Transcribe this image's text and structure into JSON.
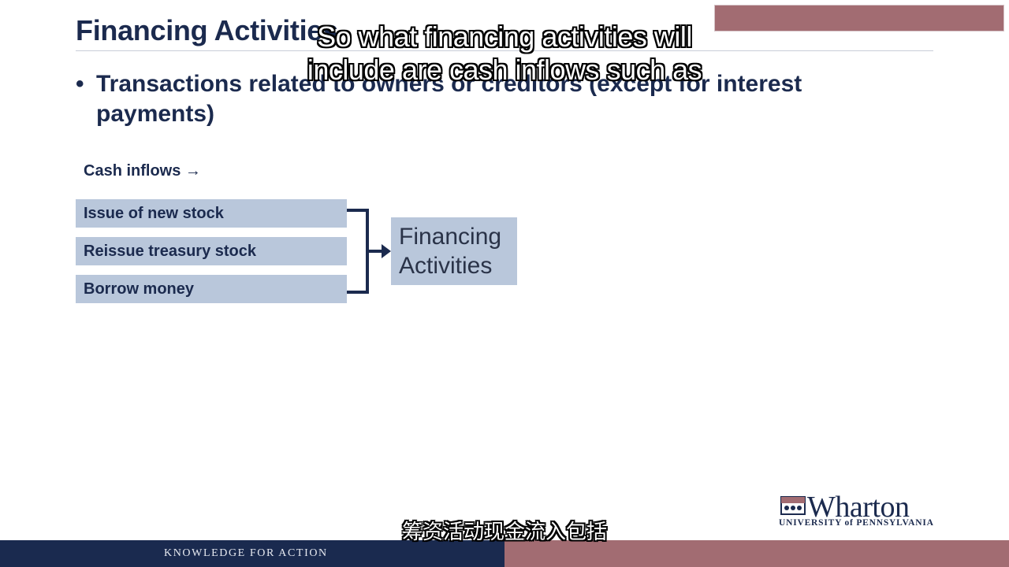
{
  "slide": {
    "title": "Financing Activities",
    "bullet": "Transactions related to owners or creditors (except for interest payments)",
    "cash_inflows_label": "Cash inflows →",
    "items": [
      "Issue of new stock",
      "Reissue treasury stock",
      "Borrow money"
    ],
    "target_line1": "Financing",
    "target_line2": "Activities"
  },
  "subtitles": {
    "english_line1": "So what financing activities will",
    "english_line2": "include are cash inflows such as",
    "chinese": "筹资活动现金流入包括"
  },
  "branding": {
    "logo_word": "Wharton",
    "logo_sub": "UNIVERSITY of PENNSYLVANIA",
    "footer_tagline": "KNOWLEDGE FOR ACTION"
  },
  "colors": {
    "navy": "#1b2a4e",
    "box_blue": "#b9c7db",
    "maroon_accent": "#a26c72",
    "footer_navy": "#1a2a4f"
  },
  "icons": {
    "bracket": "bracket-arrow-icon",
    "shield": "penn-shield-icon"
  }
}
